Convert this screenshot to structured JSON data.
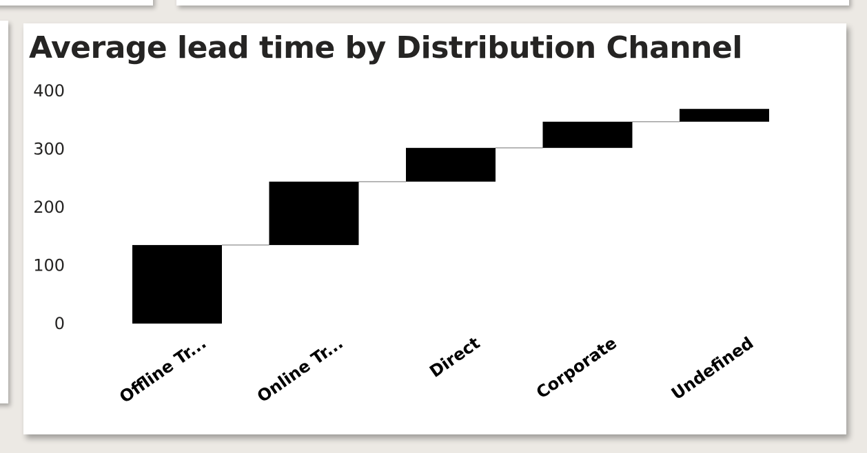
{
  "chart_data": {
    "type": "waterfall",
    "title": "Average lead time by Distribution Channel",
    "xlabel": "",
    "ylabel": "",
    "categories": [
      "Offline Tr...",
      "Online Tr...",
      "Direct",
      "Corporate",
      "Undefined"
    ],
    "values": [
      135,
      109,
      58,
      45,
      22
    ],
    "ylim": [
      0,
      400
    ],
    "yticks": [
      0,
      100,
      200,
      300,
      400
    ],
    "grid": false,
    "legend": "none",
    "colors": {
      "bar": "#000000",
      "connector": "#a0a0a0"
    }
  }
}
